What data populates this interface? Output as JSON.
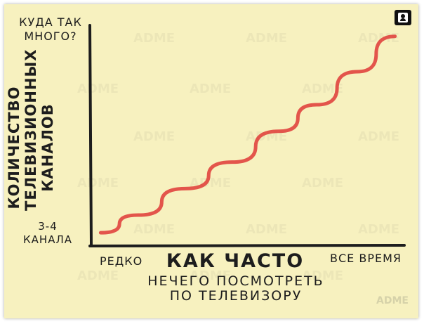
{
  "watermark": "ADME",
  "corner_icon": "person-badge-icon",
  "colors": {
    "paper": "#f7f1bf",
    "curve": "#e0443e",
    "ink": "#1d1d1d"
  },
  "chart_data": {
    "type": "line",
    "title": "",
    "ylabel": "КОЛИЧЕСТВО ТЕЛЕВИЗИОННЫХ КАНАЛОВ",
    "y_top_label": "КУДА ТАК МНОГО?",
    "y_bottom_label": "3-4 КАНАЛА",
    "xlabel": "КАК ЧАСТО",
    "xlabel_sub": "НЕЧЕГО ПОСМОТРЕТЬ ПО ТЕЛЕВИЗОРУ",
    "x_min_label": "РЕДКО",
    "x_max_label": "ВСЕ ВРЕМЯ",
    "xlim": [
      0,
      1
    ],
    "ylim": [
      0,
      1
    ],
    "grid": false,
    "series": [
      {
        "x": [
          0.03,
          0.15,
          0.3,
          0.45,
          0.6,
          0.72,
          0.85,
          0.97
        ],
        "y": [
          0.06,
          0.14,
          0.26,
          0.38,
          0.52,
          0.64,
          0.79,
          0.95
        ]
      }
    ]
  }
}
